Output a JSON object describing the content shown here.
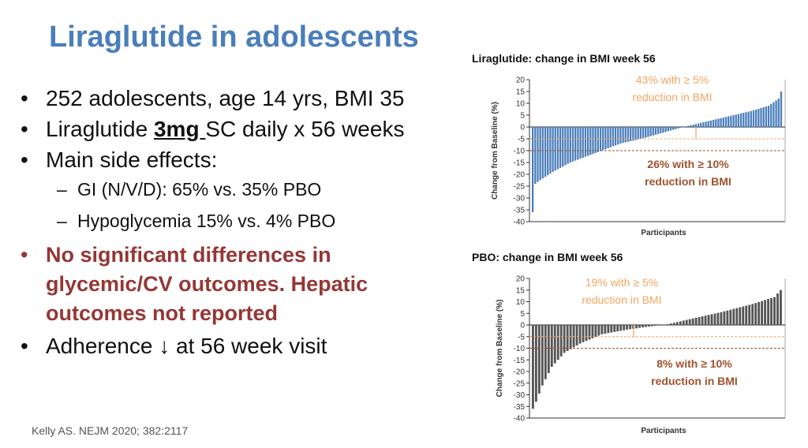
{
  "slide": {
    "title": "Liraglutide in adolescents",
    "bullets": {
      "b1": "252 adolescents, age 14 yrs, BMI 35",
      "b2_pre": "Liraglutide ",
      "b2_dose": "3mg ",
      "b2_post": "SC daily x 56 weeks",
      "b3": "Main side effects:",
      "sub1": "GI (N/V/D): 65% vs. 35% PBO",
      "sub2": "Hypoglycemia 15% vs. 4% PBO",
      "b4": "No significant differences in glycemic/CV outcomes. Hepatic outcomes not reported",
      "b5": "Adherence ↓ at 56 week visit",
      "bullet_char": "•",
      "dash_char": "–"
    },
    "citation": "Kelly AS. NEJM 2020; 382:2117"
  },
  "colors": {
    "title": "#4a7ebb",
    "highlight": "#953735",
    "lira_bars": "#4a7ebb",
    "pbo_bars": "#555555",
    "orange_light": "#f4a460",
    "orange_dark": "#a0522d"
  },
  "chart_data": [
    {
      "type": "bar",
      "title": "Liraglutide: change in BMI week 56",
      "xlabel": "Participants",
      "ylabel": "Change from Baseline (%)",
      "ylim": [
        -40,
        20
      ],
      "yticks": [
        20,
        15,
        10,
        5,
        0,
        -5,
        -10,
        -15,
        -20,
        -25,
        -30,
        -35,
        -40
      ],
      "n_participants": 100,
      "bar_color_key": "lira_bars",
      "anchors": [
        [
          0,
          -36
        ],
        [
          1,
          -24
        ],
        [
          3,
          -22.5
        ],
        [
          8,
          -19
        ],
        [
          15,
          -15
        ],
        [
          25,
          -11
        ],
        [
          35,
          -7
        ],
        [
          45,
          -4.5
        ],
        [
          55,
          -1.5
        ],
        [
          60,
          0
        ],
        [
          70,
          2.5
        ],
        [
          80,
          5
        ],
        [
          88,
          7
        ],
        [
          94,
          9
        ],
        [
          98,
          12
        ],
        [
          99,
          15
        ]
      ],
      "reference_lines": [
        -5,
        -10
      ],
      "annotations": [
        {
          "text": [
            "43% with ≥ 5%",
            "reduction in BMI"
          ],
          "color_key": "orange_light"
        },
        {
          "text": [
            "26% with ≥ 10%",
            "reduction in BMI"
          ],
          "color_key": "orange_dark"
        }
      ]
    },
    {
      "type": "bar",
      "title": "PBO: change in BMI week 56",
      "xlabel": "Participants",
      "ylabel": "Change from Baseline (%)",
      "ylim": [
        -40,
        20
      ],
      "yticks": [
        20,
        15,
        10,
        5,
        0,
        -5,
        -10,
        -15,
        -20,
        -25,
        -30,
        -35,
        -40
      ],
      "n_participants": 80,
      "bar_color_key": "pbo_bars",
      "anchors": [
        [
          0,
          -36
        ],
        [
          1,
          -33
        ],
        [
          3,
          -26
        ],
        [
          6,
          -18
        ],
        [
          10,
          -12
        ],
        [
          15,
          -8
        ],
        [
          22,
          -4
        ],
        [
          30,
          -2
        ],
        [
          38,
          -0.5
        ],
        [
          42,
          0
        ],
        [
          50,
          2.5
        ],
        [
          60,
          5.5
        ],
        [
          70,
          9
        ],
        [
          77,
          12
        ],
        [
          79,
          15
        ]
      ],
      "reference_lines": [
        -5,
        -10
      ],
      "annotations": [
        {
          "text": [
            "19% with ≥ 5%",
            "reduction in BMI"
          ],
          "color_key": "orange_light"
        },
        {
          "text": [
            "8% with ≥ 10%",
            "reduction in BMI"
          ],
          "color_key": "orange_dark"
        }
      ]
    }
  ]
}
